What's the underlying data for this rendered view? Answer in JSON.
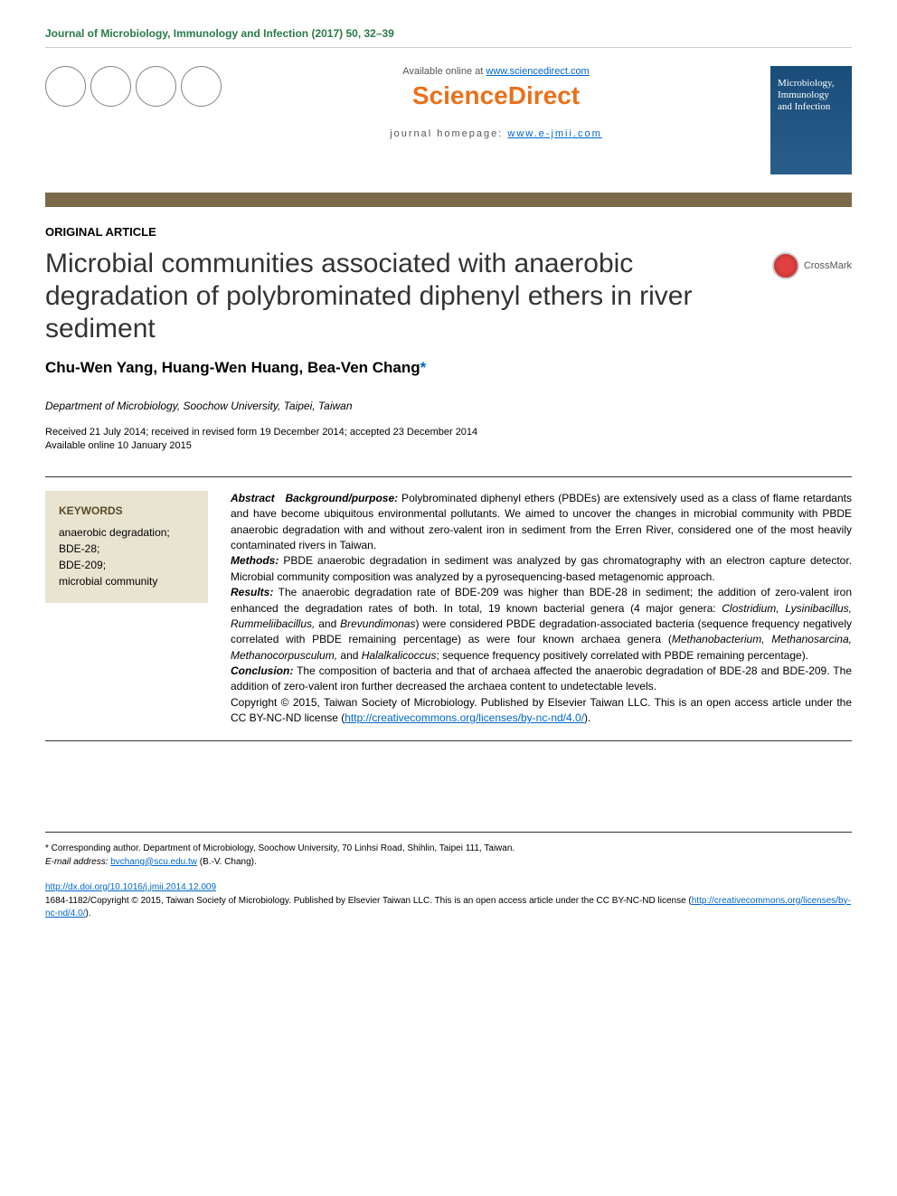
{
  "journal_header": "Journal of Microbiology, Immunology and Infection (2017) 50, 32–39",
  "sciencedirect": {
    "available_text": "Available online at ",
    "available_url": "www.sciencedirect.com",
    "logo_text": "ScienceDirect",
    "homepage_label": "journal homepage: ",
    "homepage_url": "www.e-jmii.com"
  },
  "journal_cover": {
    "title_line1": "Microbiology,",
    "title_line2": "Immunology",
    "title_line3": "and Infection"
  },
  "article_type": "ORIGINAL ARTICLE",
  "title": "Microbial communities associated with anaerobic degradation of polybrominated diphenyl ethers in river sediment",
  "crossmark": "CrossMark",
  "authors": "Chu-Wen Yang, Huang-Wen Huang, Bea-Ven Chang",
  "affiliation": "Department of Microbiology, Soochow University, Taipei, Taiwan",
  "dates": {
    "line1": "Received 21 July 2014; received in revised form 19 December 2014; accepted 23 December 2014",
    "line2": "Available online 10 January 2015"
  },
  "keywords": {
    "heading": "KEYWORDS",
    "items": "anaerobic degradation;\nBDE-28;\nBDE-209;\nmicrobial community"
  },
  "abstract": {
    "label": "Abstract",
    "background_label": "Background/purpose:",
    "background_text": " Polybrominated diphenyl ethers (PBDEs) are extensively used as a class of flame retardants and have become ubiquitous environmental pollutants. We aimed to uncover the changes in microbial community with PBDE anaerobic degradation with and without zero-valent iron in sediment from the Erren River, considered one of the most heavily contaminated rivers in Taiwan.",
    "methods_label": "Methods:",
    "methods_text": " PBDE anaerobic degradation in sediment was analyzed by gas chromatography with an electron capture detector. Microbial community composition was analyzed by a pyrosequencing-based metagenomic approach.",
    "results_label": "Results:",
    "results_text_1": " The anaerobic degradation rate of BDE-209 was higher than BDE-28 in sediment; the addition of zero-valent iron enhanced the degradation rates of both. In total, 19 known bacterial genera (4 major genera: ",
    "results_italic_1": "Clostridium, Lysinibacillus, Rummeliibacillus,",
    "results_text_2": " and ",
    "results_italic_2": "Brevundimonas",
    "results_text_3": ") were considered PBDE degradation-associated bacteria (sequence frequency negatively correlated with PBDE remaining percentage) as were four known archaea genera (",
    "results_italic_3": "Methanobacterium, Methanosarcina, Methanocorpusculum,",
    "results_text_4": " and ",
    "results_italic_4": "Halalkalicoccus",
    "results_text_5": "; sequence frequency positively correlated with PBDE remaining percentage).",
    "conclusion_label": "Conclusion:",
    "conclusion_text": " The composition of bacteria and that of archaea affected the anaerobic degradation of BDE-28 and BDE-209. The addition of zero-valent iron further decreased the archaea content to undetectable levels.",
    "copyright_text": "Copyright © 2015, Taiwan Society of Microbiology. Published by Elsevier Taiwan LLC. This is an open access article under the CC BY-NC-ND license (",
    "license_url": "http://creativecommons.org/licenses/by-nc-nd/4.0/",
    "copyright_close": ")."
  },
  "corresponding": {
    "label": "* Corresponding author. Department of Microbiology, Soochow University, 70 Linhsi Road, Shihlin, Taipei 111, Taiwan.",
    "email_label": "E-mail address: ",
    "email": "bvchang@scu.edu.tw",
    "email_name": " (B.-V. Chang)."
  },
  "doi": "http://dx.doi.org/10.1016/j.jmii.2014.12.009",
  "footer_copyright": {
    "text1": "1684-1182/Copyright © 2015, Taiwan Society of Microbiology. Published by Elsevier Taiwan LLC. This is an open access article under the CC BY-NC-ND license (",
    "url": "http://creativecommons.org/licenses/by-nc-nd/4.0/",
    "text2": ")."
  },
  "colors": {
    "journal_header": "#2a7a4a",
    "sd_logo": "#e9711c",
    "link": "#0066cc",
    "separator_bar": "#7a6a4a",
    "keywords_bg": "#e8e4d0",
    "keywords_heading": "#5a4a2a",
    "cover_bg": "#1a4d7a"
  }
}
